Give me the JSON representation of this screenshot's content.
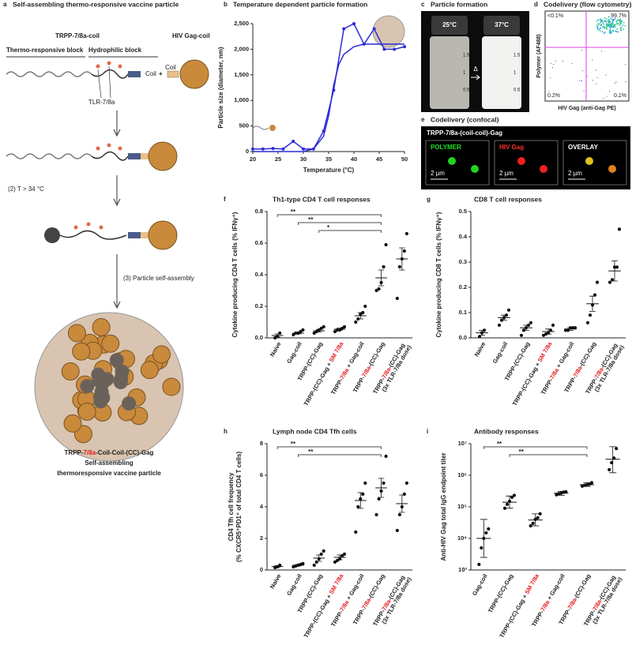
{
  "style": {
    "highlight_terms": [
      "SM 7/8a",
      "7/8a"
    ],
    "highlight_color": "#e41a1c"
  },
  "figure": {
    "panel_a": {
      "letter": "a",
      "title": "Self-assembling thermo-responsive vaccine particle",
      "polymer": "TRPP-7/8a-coil",
      "protein": "HIV Gag-coil",
      "block_1": "Thermo-responsive block",
      "block_2": "Hydrophilic block",
      "coil_1": "Coil",
      "plus": "+",
      "coil_2": "Coil",
      "agonist": "TLR-7/8a",
      "step_2": "(2) T > 34 °C",
      "step_3": "(3) Particle self-assembly",
      "product": [
        "TRPP-7/8a-Coil-Coil-(CC)-Gag",
        "Self-assembling",
        "thermoresponsive vaccine particle"
      ]
    },
    "panel_c": {
      "letter": "c",
      "title": "Particle formation",
      "left": "25°C",
      "right": "37°C",
      "arrow": "Δ",
      "scale": [
        "1.5",
        "1",
        "0.5"
      ]
    },
    "panel_d": {
      "letter": "d",
      "title": "Codelivery (flow cytometry)",
      "quadrants": [
        "<0.1%",
        "99.7%",
        "0.2%",
        "0.1%"
      ],
      "ylabel": "Polymer (AF488)",
      "xlabel": "HIV Gag (anti-Gag PE)"
    },
    "panel_e": {
      "letter": "e",
      "title": "Codelivery (confocal)",
      "construct": "TRPP-7/8a-(coil-coil)-Gag",
      "channels": [
        "POLYMER",
        "HIV Gag",
        "OVERLAY"
      ],
      "scale_bar": "2 µm"
    }
  },
  "chart_data": [
    {
      "type": "line",
      "panel": "b",
      "title": "Temperature dependent particle formation",
      "xlabel": "Temperature (°C)",
      "ylabel": "Particle size (diameter, nm)",
      "xlim": [
        20,
        50
      ],
      "xticks": [
        20,
        25,
        30,
        35,
        40,
        45,
        50
      ],
      "ylim": [
        0,
        2500
      ],
      "yticks": [
        0,
        500,
        {
          "value": 1000,
          "label": "1,000"
        },
        {
          "value": 1500,
          "label": "1,500"
        },
        {
          "value": 2000,
          "label": "2,000"
        },
        {
          "value": 2500,
          "label": "2,500"
        }
      ],
      "series": [
        {
          "color": "#2a2ad8",
          "markers": true,
          "x": [
            20,
            22,
            24,
            26,
            28,
            30,
            32,
            34,
            36,
            38,
            40,
            42,
            44,
            46,
            48,
            50
          ],
          "values": [
            50,
            50,
            60,
            50,
            200,
            50,
            50,
            400,
            1200,
            2400,
            2500,
            2100,
            2400,
            2000,
            2000,
            2050
          ]
        },
        {
          "color": "#2a2ad8",
          "markers": false,
          "x": [
            20,
            30,
            32,
            34,
            35,
            36,
            37,
            38,
            40,
            42,
            45,
            50
          ],
          "values": [
            0,
            0,
            50,
            300,
            700,
            1300,
            1700,
            1900,
            2050,
            2100,
            2100,
            2100
          ]
        }
      ]
    },
    {
      "type": "dot",
      "panel": "f",
      "title": "Th1-type CD4 T cell responses",
      "ylabel": "Cytokine producing CD4 T cells (% IFNγ⁺)",
      "ylim": [
        0,
        0.8
      ],
      "yticks": [
        {
          "value": 0,
          "label": "0.0"
        },
        0.2,
        0.4,
        0.6,
        0.8
      ],
      "categories": [
        "Naive",
        "Gag-coil",
        "TRPP-(CC)-Gag",
        "TRPP-(CC)-Gag + SM 7/8a",
        "TRPP-7/8a + Gag-coil",
        "TRPP-7/8a-(CC)-Gag",
        "TRPP-7/8a-(CC)-Gag (3x TLR-7/8a dose)"
      ],
      "points": [
        [
          0.0,
          0.01,
          0.03
        ],
        [
          0.02,
          0.03,
          0.03,
          0.04,
          0.05
        ],
        [
          0.03,
          0.04,
          0.05,
          0.06,
          0.07
        ],
        [
          0.04,
          0.05,
          0.05,
          0.06,
          0.07
        ],
        [
          0.1,
          0.12,
          0.15,
          0.16,
          0.2
        ],
        [
          0.3,
          0.31,
          0.35,
          0.45,
          0.59
        ],
        [
          0.25,
          0.45,
          0.5,
          0.55,
          0.66
        ]
      ],
      "means": [
        0.015,
        0.03,
        0.045,
        0.055,
        0.14,
        0.38,
        0.5
      ],
      "error_bars": [
        [
          0.005,
          0.025
        ],
        [
          0.025,
          0.035
        ],
        [
          0.037,
          0.053
        ],
        [
          0.048,
          0.062
        ],
        [
          0.12,
          0.16
        ],
        [
          0.33,
          0.43
        ],
        [
          0.43,
          0.57
        ]
      ],
      "significance": [
        {
          "from": "Naive",
          "to": "TRPP-7/8a-(CC)-Gag",
          "label": "**"
        },
        {
          "from": "Gag-coil",
          "to": "TRPP-7/8a-(CC)-Gag",
          "label": "**"
        },
        {
          "from": "TRPP-(CC)-Gag",
          "to": "TRPP-7/8a-(CC)-Gag",
          "label": "*"
        }
      ]
    },
    {
      "type": "dot",
      "panel": "g",
      "title": "CD8 T cell responses",
      "ylabel": "Cytokine producing CD8 T cells (% IFNγ⁺)",
      "ylim": [
        0,
        0.5
      ],
      "yticks": [
        {
          "value": 0,
          "label": "0.0"
        },
        0.1,
        0.2,
        0.3,
        0.4,
        0.5
      ],
      "categories": [
        "Naive",
        "Gag-coil",
        "TRPP-(CC)-Gag",
        "TRPP-(CC)-Gag + SM 7/8a",
        "TRPP-7/8a + Gag-coil",
        "TRPP-7/8a-(CC)-Gag",
        "TRPP-7/8a-(CC)-Gag (3x TLR-7/8a dose)"
      ],
      "points": [
        [
          0.005,
          0.02,
          0.03
        ],
        [
          0.05,
          0.07,
          0.08,
          0.09,
          0.11
        ],
        [
          0.01,
          0.03,
          0.04,
          0.05,
          0.06
        ],
        [
          0.01,
          0.015,
          0.02,
          0.03,
          0.05
        ],
        [
          0.03,
          0.03,
          0.04,
          0.04,
          0.04
        ],
        [
          0.06,
          0.09,
          0.13,
          0.17,
          0.22
        ],
        [
          0.22,
          0.23,
          0.28,
          0.28,
          0.43
        ]
      ],
      "means": [
        0.02,
        0.08,
        0.04,
        0.025,
        0.035,
        0.135,
        0.265
      ],
      "error_bars": [
        [
          0.01,
          0.03
        ],
        [
          0.07,
          0.09
        ],
        [
          0.03,
          0.05
        ],
        [
          0.015,
          0.035
        ],
        [
          0.03,
          0.04
        ],
        [
          0.105,
          0.165
        ],
        [
          0.225,
          0.305
        ]
      ],
      "significance": []
    },
    {
      "type": "dot",
      "panel": "h",
      "title": "Lymph node CD4 Tfh cells",
      "ylabel": [
        "CD4 Tfh cell frequency",
        "(% CXCR5⁺PD1⁺ of total CD4 T cells)"
      ],
      "ylim": [
        0,
        8
      ],
      "yticks": [
        0,
        2,
        4,
        6,
        8
      ],
      "categories": [
        "Naive",
        "Gag-coil",
        "TRPP-(CC)-Gag",
        "TRPP-(CC)-Gag + SM 7/8a",
        "TRPP-7/8a + Gag-coil",
        "TRPP-7/8a-(CC)-Gag",
        "TRPP-7/8a-(CC)-Gag (3x TLR-7/8a dose)"
      ],
      "points": [
        [
          0.15,
          0.2,
          0.3
        ],
        [
          0.2,
          0.25,
          0.3,
          0.35,
          0.4
        ],
        [
          0.3,
          0.5,
          0.7,
          1.0,
          1.2
        ],
        [
          0.5,
          0.6,
          0.7,
          0.9,
          1.0
        ],
        [
          2.4,
          4.0,
          4.5,
          4.8,
          5.5
        ],
        [
          3.5,
          4.5,
          5.0,
          5.5,
          7.2
        ],
        [
          2.5,
          3.5,
          4.0,
          4.8,
          5.5
        ]
      ],
      "means": [
        0.22,
        0.3,
        0.75,
        0.8,
        4.4,
        5.2,
        4.2
      ],
      "error_bars": [
        [
          0.17,
          0.27
        ],
        [
          0.25,
          0.35
        ],
        [
          0.55,
          0.95
        ],
        [
          0.65,
          0.95
        ],
        [
          3.9,
          4.9
        ],
        [
          4.6,
          5.8
        ],
        [
          3.65,
          4.75
        ]
      ],
      "significance": [
        {
          "from": "Naive",
          "to": "TRPP-7/8a-(CC)-Gag",
          "label": "**"
        },
        {
          "from": "Gag-coil",
          "to": "TRPP-7/8a-(CC)-Gag",
          "label": "**"
        }
      ]
    },
    {
      "type": "dot",
      "panel": "i",
      "title": "Antibody responses",
      "ylabel": "Anti-HIV Gag total IgG endpoint titer",
      "log_scale": true,
      "ylim": [
        1000,
        10000000
      ],
      "yticks": [
        {
          "value": 1000,
          "label": "10³"
        },
        {
          "value": 10000,
          "label": "10⁴"
        },
        {
          "value": 100000,
          "label": "10⁵"
        },
        {
          "value": 1000000,
          "label": "10⁶"
        },
        {
          "value": 10000000,
          "label": "10⁷"
        }
      ],
      "categories": [
        "Gag-coil",
        "TRPP-(CC)-Gag",
        "TRPP-(CC)-Gag + SM 7/8a",
        "TRPP-7/8a + Gag-coil",
        "TRPP-7/8a-(CC)-Gag",
        "TRPP-7/8a-(CC)-Gag (3x TLR-7/8a dose)"
      ],
      "points": [
        [
          1500,
          5000,
          10000,
          15000,
          20000
        ],
        [
          90000,
          120000,
          150000,
          200000,
          230000
        ],
        [
          25000,
          30000,
          40000,
          45000,
          60000
        ],
        [
          240000,
          260000,
          270000,
          290000,
          300000
        ],
        [
          450000,
          480000,
          500000,
          520000,
          580000
        ],
        [
          1500000,
          2500000,
          3500000,
          7000000
        ]
      ],
      "means": [
        10000,
        140000,
        38000,
        270000,
        500000,
        3200000
      ],
      "error_bars": [
        [
          2500,
          40000
        ],
        [
          90000,
          220000
        ],
        [
          25000,
          60000
        ],
        [
          230000,
          310000
        ],
        [
          440000,
          580000
        ],
        [
          1200000,
          8000000
        ]
      ],
      "significance": [
        {
          "from": "Gag-coil",
          "to": "TRPP-7/8a-(CC)-Gag",
          "label": "**"
        },
        {
          "from": "TRPP-(CC)-Gag",
          "to": "TRPP-7/8a-(CC)-Gag",
          "label": "**"
        }
      ]
    }
  ]
}
